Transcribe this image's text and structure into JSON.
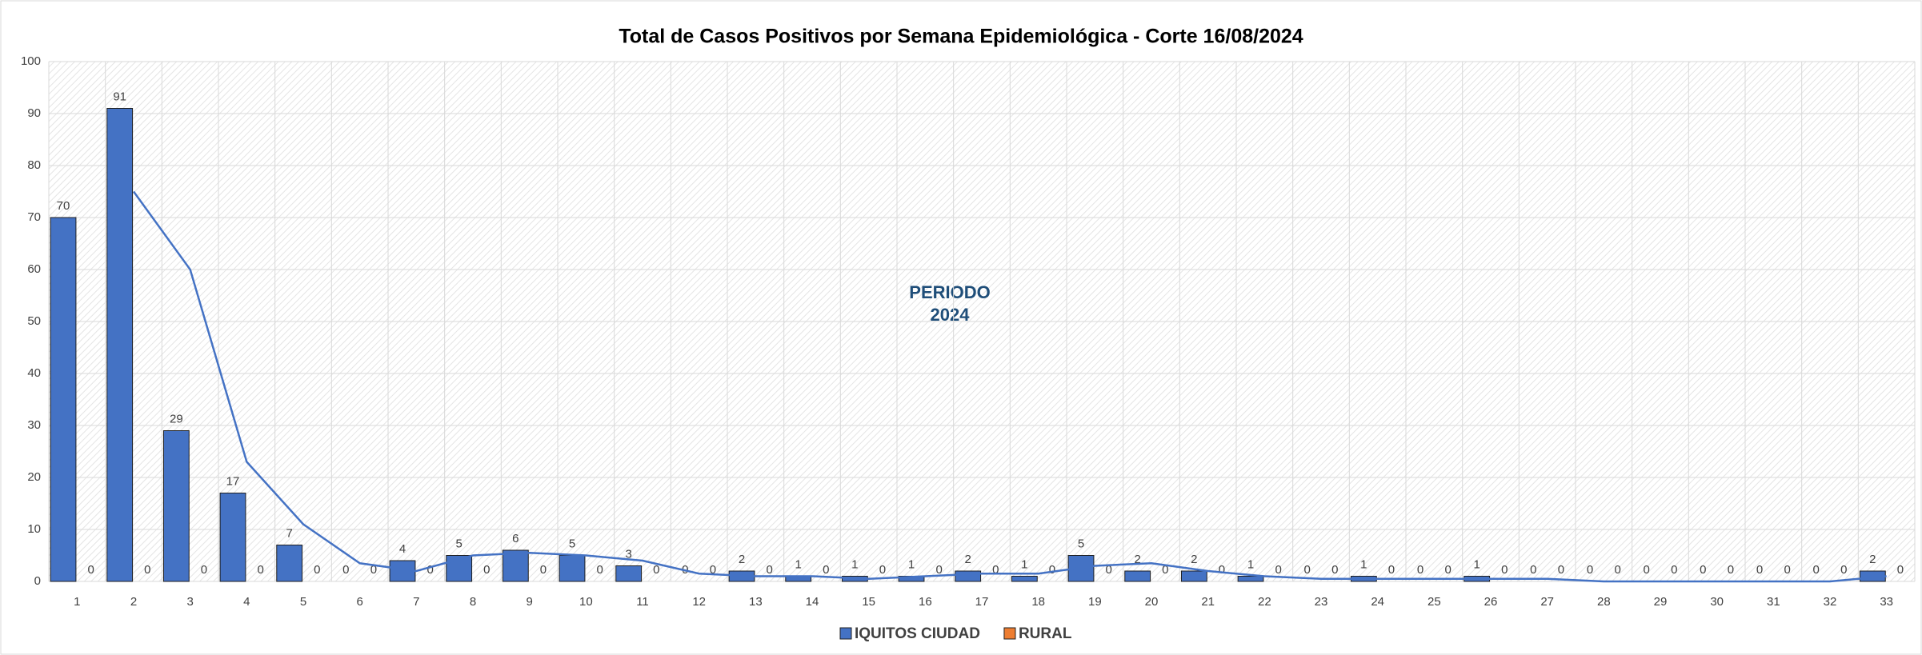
{
  "chart_data": {
    "type": "bar",
    "title": "Total de Casos Positivos por Semana Epidemiológica - Corte 16/08/2024",
    "annotation": [
      "PERIODO",
      "2024"
    ],
    "categories": [
      1,
      2,
      3,
      4,
      5,
      6,
      7,
      8,
      9,
      10,
      11,
      12,
      13,
      14,
      15,
      16,
      17,
      18,
      19,
      20,
      21,
      22,
      23,
      24,
      25,
      26,
      27,
      28,
      29,
      30,
      31,
      32,
      33
    ],
    "series": [
      {
        "name": "IQUITOS CIUDAD",
        "color": "#4472c4",
        "values": [
          70,
          91,
          29,
          17,
          7,
          0,
          4,
          5,
          6,
          5,
          3,
          0,
          2,
          1,
          1,
          1,
          2,
          1,
          5,
          2,
          2,
          1,
          0,
          1,
          0,
          1,
          0,
          0,
          0,
          0,
          0,
          0,
          2
        ]
      },
      {
        "name": "RURAL",
        "color": "#ed7d31",
        "values": [
          0,
          0,
          0,
          0,
          0,
          0,
          0,
          0,
          0,
          0,
          0,
          0,
          0,
          0,
          0,
          0,
          0,
          0,
          0,
          0,
          0,
          0,
          0,
          0,
          0,
          0,
          0,
          0,
          0,
          0,
          0,
          0,
          0
        ]
      }
    ],
    "trend": {
      "color": "#4472c4",
      "values": [
        null,
        75,
        60,
        23,
        11,
        3.5,
        2,
        5,
        5.5,
        5,
        4,
        1.5,
        1,
        1,
        0.5,
        1,
        1.5,
        1.5,
        3,
        3.5,
        2,
        1,
        0.5,
        0.5,
        0.5,
        0.5,
        0.5,
        0,
        0,
        0,
        0,
        0,
        1
      ]
    },
    "ylim": [
      0,
      100
    ],
    "yticks": [
      0,
      10,
      20,
      30,
      40,
      50,
      60,
      70,
      80,
      90,
      100
    ],
    "grid": true
  }
}
